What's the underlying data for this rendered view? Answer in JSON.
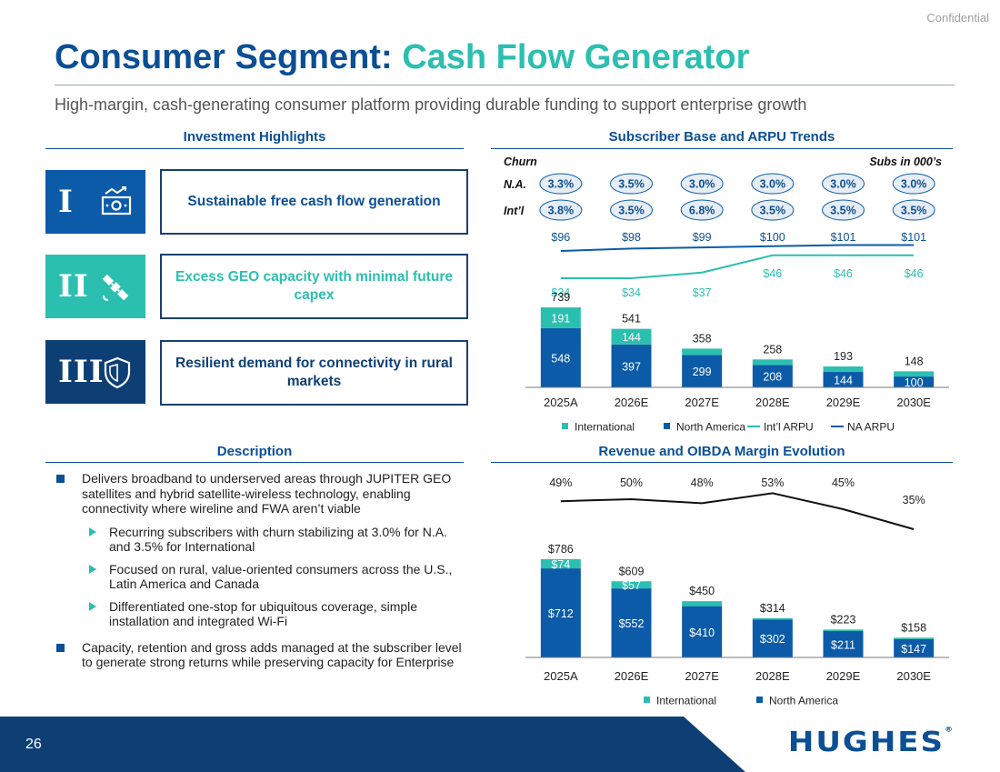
{
  "confidential": "Confidential",
  "title": {
    "main": "Consumer Segment:",
    "accent": "Cash Flow Generator"
  },
  "subtitle": "High-margin, cash-generating consumer platform providing durable funding to support enterprise growth",
  "highlights": {
    "header": "Investment Highlights",
    "items": [
      {
        "num": "I",
        "icon": "cash-icon",
        "text": "Sustainable free cash flow generation",
        "color": "#0b5ba8",
        "text_color": "#0b4f95"
      },
      {
        "num": "II",
        "icon": "satellite-icon",
        "text": "Excess GEO capacity with minimal future capex",
        "color": "#2bbfb0",
        "text_color": "#2bbfb0"
      },
      {
        "num": "III",
        "icon": "shield-icon",
        "text": "Resilient demand for connectivity in rural markets",
        "color": "#0e3f74",
        "text_color": "#0e3f74"
      }
    ]
  },
  "description": {
    "header": "Description",
    "bullets": [
      "Delivers broadband to underserved areas through JUPITER GEO satellites and hybrid satellite-wireless technology, enabling connectivity where wireline and FWA aren’t viable",
      "Recurring subscribers with churn stabilizing at 3.0% for N.A. and 3.5% for International",
      "Focused on rural, value-oriented consumers across the U.S., Latin America and Canada",
      "Differentiated one-stop for ubiquitous coverage, simple installation and integrated Wi-Fi",
      "Capacity, retention and gross adds managed at the subscriber level to generate strong returns while preserving capacity for Enterprise"
    ]
  },
  "chart_data": [
    {
      "type": "bar",
      "title": "Subscriber Base and ARPU Trends",
      "churn_label": "Churn",
      "units_note": "Subs in 000’s",
      "categories": [
        "2025A",
        "2026E",
        "2027E",
        "2028E",
        "2029E",
        "2030E"
      ],
      "stacked": true,
      "series": [
        {
          "name": "North America",
          "values": [
            548,
            397,
            299,
            208,
            144,
            100
          ],
          "color": "#0b5ba8",
          "labels": [
            "548",
            "397",
            "299",
            "208",
            "144",
            "100"
          ]
        },
        {
          "name": "International",
          "values": [
            191,
            144,
            59,
            50,
            49,
            48
          ],
          "color": "#2bbfb0",
          "labels": [
            "191",
            "144",
            "",
            "",
            "",
            ""
          ]
        }
      ],
      "totals": [
        "739",
        "541",
        "358",
        "258",
        "193",
        "148"
      ],
      "ylim": [
        0,
        800
      ],
      "lines": [
        {
          "name": "Int’l ARPU",
          "values": [
            34,
            34,
            37,
            46,
            46,
            46
          ],
          "labels": [
            "$34",
            "$34",
            "$37",
            "$46",
            "$46",
            "$46"
          ],
          "color": "#2bbfb0"
        },
        {
          "name": "NA ARPU",
          "values": [
            96,
            98,
            99,
            100,
            101,
            101
          ],
          "labels": [
            "$96",
            "$98",
            "$99",
            "$100",
            "$101",
            "$101"
          ],
          "color": "#0b5ba8"
        }
      ],
      "churn": {
        "na_label": "N.A.",
        "intl_label": "Int’l",
        "na": [
          "3.3%",
          "3.5%",
          "3.0%",
          "3.0%",
          "3.0%",
          "3.0%"
        ],
        "intl": [
          "3.8%",
          "3.5%",
          "6.8%",
          "3.5%",
          "3.5%",
          "3.5%"
        ]
      },
      "legend": [
        "International",
        "North America",
        "Int’l ARPU",
        "NA ARPU"
      ],
      "legend_placement": "bottom"
    },
    {
      "type": "bar",
      "title": "Revenue and OIBDA Margin Evolution",
      "categories": [
        "2025A",
        "2026E",
        "2027E",
        "2028E",
        "2029E",
        "2030E"
      ],
      "stacked": true,
      "series": [
        {
          "name": "North America",
          "values": [
            712,
            552,
            410,
            302,
            211,
            147
          ],
          "color": "#0b5ba8",
          "labels": [
            "$712",
            "$552",
            "$410",
            "$302",
            "$211",
            "$147"
          ]
        },
        {
          "name": "International",
          "values": [
            74,
            57,
            40,
            12,
            12,
            11
          ],
          "color": "#2bbfb0",
          "labels": [
            "$74",
            "$57",
            "",
            "",
            "",
            ""
          ]
        }
      ],
      "totals": [
        "$786",
        "$609",
        "$450",
        "$314",
        "$223",
        "$158"
      ],
      "ylim": [
        0,
        800
      ],
      "margin_line": {
        "values": [
          49,
          50,
          48,
          53,
          45,
          35
        ],
        "labels": [
          "49%",
          "50%",
          "48%",
          "53%",
          "45%",
          "35%"
        ],
        "color": "#111111"
      },
      "legend": [
        "International",
        "North America"
      ],
      "legend_placement": "bottom"
    }
  ],
  "footer": {
    "page": "26",
    "logo": "HUGHES",
    "logo_mark": "®"
  }
}
